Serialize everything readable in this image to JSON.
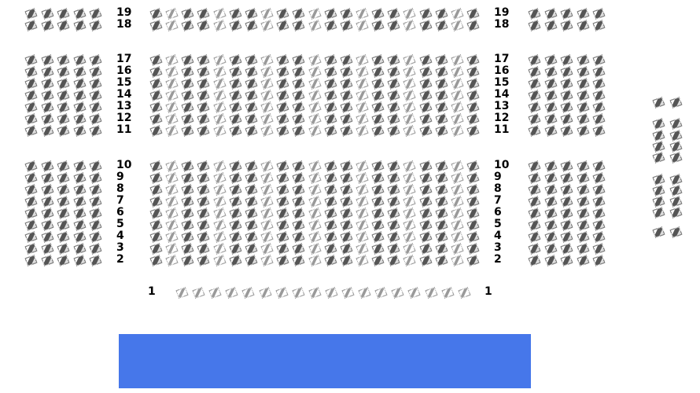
{
  "stage": {
    "color": "#4677ea"
  },
  "rows": [
    {
      "label": "19",
      "left": 5,
      "center": 21,
      "right": 5
    },
    {
      "label": "18",
      "left": 5,
      "center": 21,
      "right": 5
    },
    {
      "label": "17",
      "left": 5,
      "center": 21,
      "right": 5
    },
    {
      "label": "16",
      "left": 5,
      "center": 21,
      "right": 5
    },
    {
      "label": "15",
      "left": 5,
      "center": 21,
      "right": 5
    },
    {
      "label": "14",
      "left": 5,
      "center": 21,
      "right": 5
    },
    {
      "label": "13",
      "left": 5,
      "center": 21,
      "right": 5
    },
    {
      "label": "12",
      "left": 5,
      "center": 21,
      "right": 5
    },
    {
      "label": "11",
      "left": 5,
      "center": 21,
      "right": 5
    },
    {
      "label": "10",
      "left": 5,
      "center": 21,
      "right": 5
    },
    {
      "label": "9",
      "left": 5,
      "center": 21,
      "right": 5
    },
    {
      "label": "8",
      "left": 5,
      "center": 21,
      "right": 5
    },
    {
      "label": "7",
      "left": 5,
      "center": 21,
      "right": 5
    },
    {
      "label": "6",
      "left": 5,
      "center": 21,
      "right": 5
    },
    {
      "label": "5",
      "left": 5,
      "center": 21,
      "right": 5
    },
    {
      "label": "4",
      "left": 5,
      "center": 21,
      "right": 5
    },
    {
      "label": "3",
      "left": 5,
      "center": 21,
      "right": 5
    },
    {
      "label": "2",
      "left": 5,
      "center": 21,
      "right": 5
    }
  ],
  "front_row": {
    "label": "1",
    "seats": 18
  },
  "side_box": {
    "seat_pairs": 10
  }
}
